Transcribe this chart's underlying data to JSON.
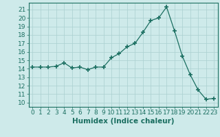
{
  "x": [
    0,
    1,
    2,
    3,
    4,
    5,
    6,
    7,
    8,
    9,
    10,
    11,
    12,
    13,
    14,
    15,
    16,
    17,
    18,
    19,
    20,
    21,
    22,
    23
  ],
  "y": [
    14.2,
    14.2,
    14.2,
    14.3,
    14.7,
    14.1,
    14.2,
    13.9,
    14.2,
    14.2,
    15.3,
    15.8,
    16.6,
    17.0,
    18.3,
    19.7,
    20.0,
    21.3,
    18.5,
    15.5,
    13.3,
    11.5,
    10.4,
    10.5
  ],
  "line_color": "#1a6e60",
  "marker": "+",
  "marker_size": 4,
  "marker_linewidth": 1.2,
  "bg_color": "#ceeaea",
  "grid_color_major": "#aad0d0",
  "grid_color_minor": "#bfdede",
  "xlabel": "Humidex (Indice chaleur)",
  "xlabel_fontsize": 7.5,
  "tick_fontsize": 6.5,
  "xlim": [
    -0.5,
    23.5
  ],
  "ylim": [
    9.5,
    21.8
  ],
  "yticks": [
    10,
    11,
    12,
    13,
    14,
    15,
    16,
    17,
    18,
    19,
    20,
    21
  ],
  "xticks": [
    0,
    1,
    2,
    3,
    4,
    5,
    6,
    7,
    8,
    9,
    10,
    11,
    12,
    13,
    14,
    15,
    16,
    17,
    18,
    19,
    20,
    21,
    22,
    23
  ]
}
